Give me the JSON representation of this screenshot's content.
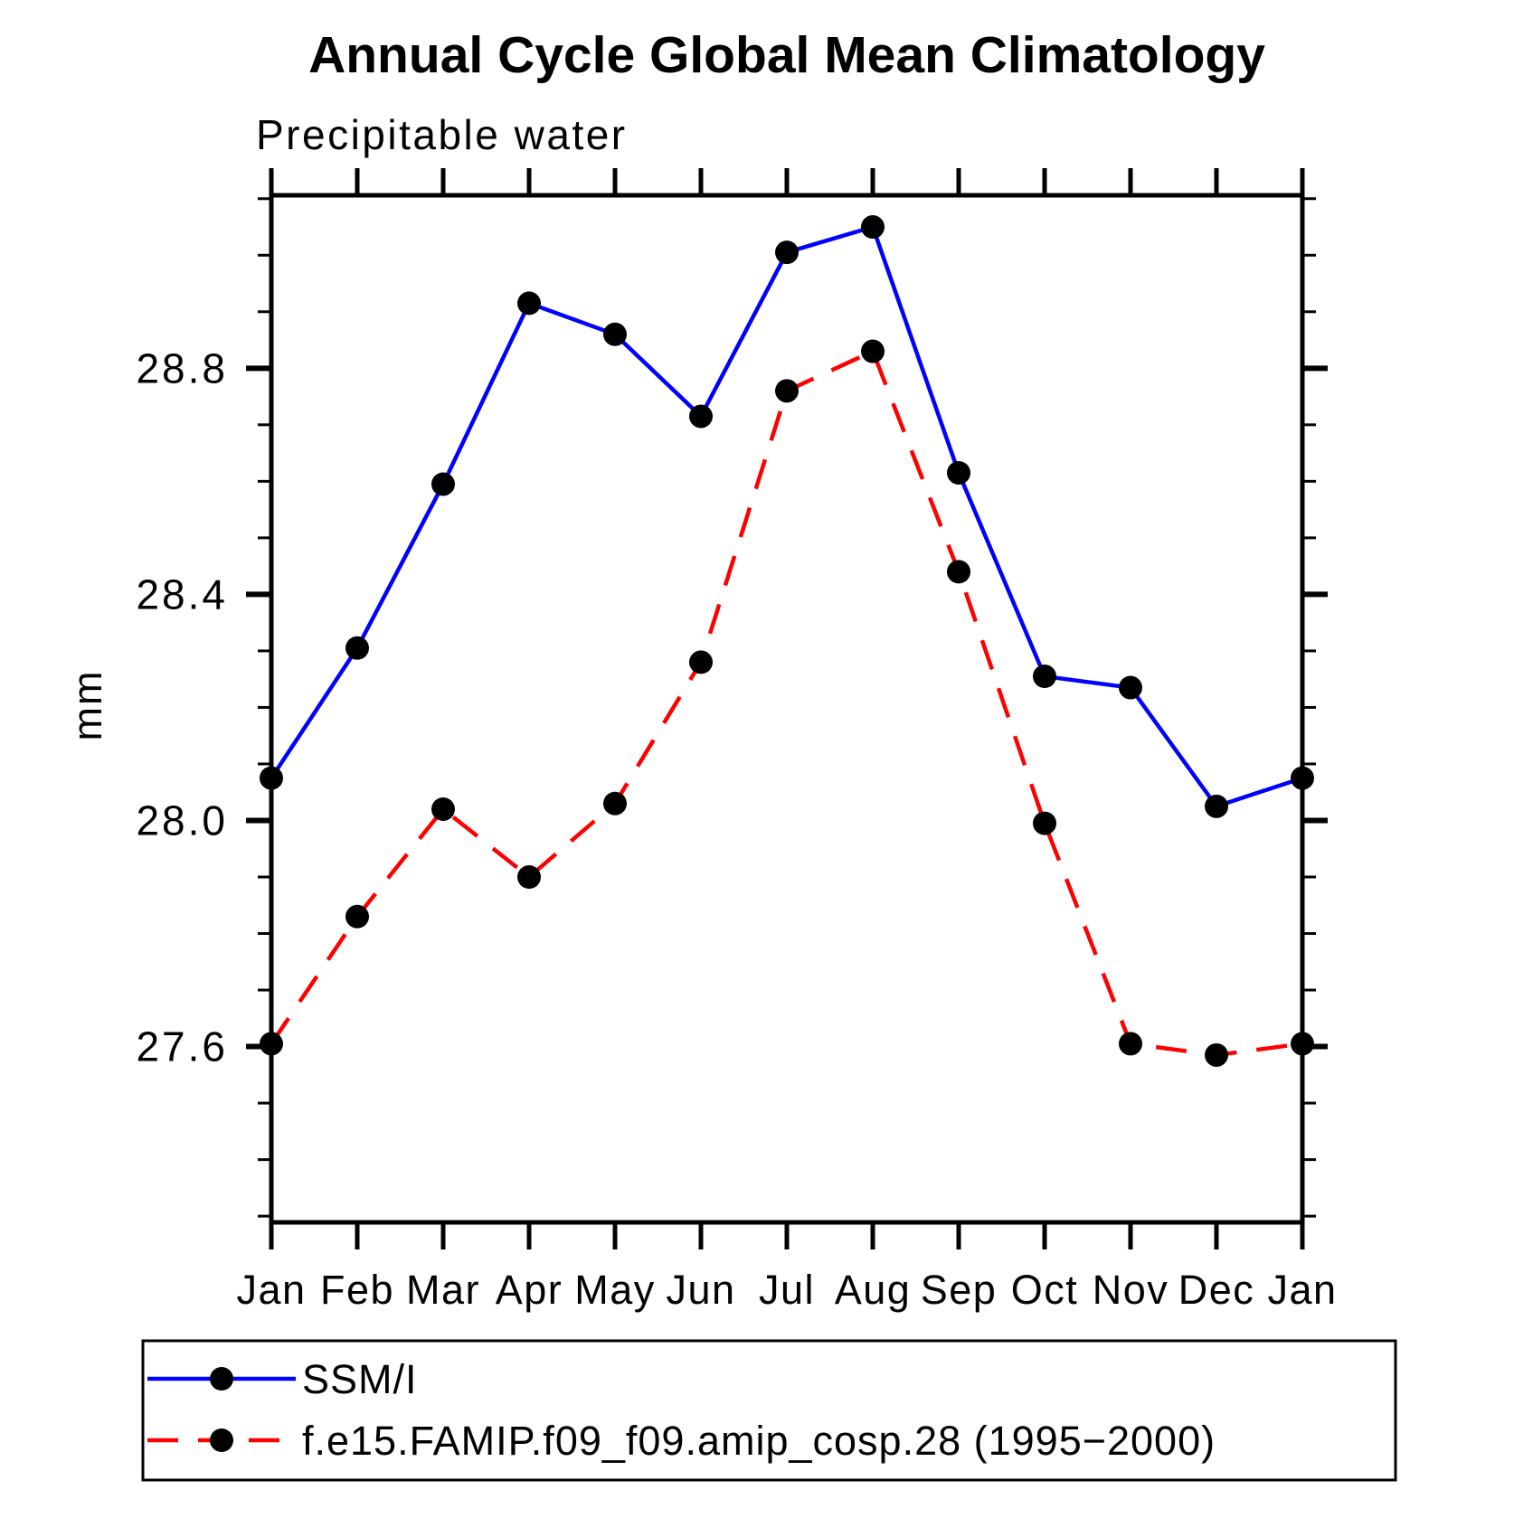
{
  "title": "Annual Cycle Global Mean Climatology",
  "subtitle": "Precipitable water",
  "ylabel": "mm",
  "chart_data": {
    "type": "line",
    "x_categories": [
      "Jan",
      "Feb",
      "Mar",
      "Apr",
      "May",
      "Jun",
      "Jul",
      "Aug",
      "Sep",
      "Oct",
      "Nov",
      "Dec",
      "Jan"
    ],
    "series": [
      {
        "name": "SSM/I",
        "color": "#0000ff",
        "style": "solid",
        "marker": "filled-circle",
        "marker_color": "#000000",
        "values": [
          28.075,
          28.305,
          28.595,
          28.915,
          28.86,
          28.715,
          29.005,
          29.05,
          28.615,
          28.255,
          28.235,
          28.025,
          28.075
        ]
      },
      {
        "name": "f.e15.FAMIP.f09_f09.amip_cosp.28 (1995−2000)",
        "color": "#ff0000",
        "style": "dashed",
        "marker": "filled-circle",
        "marker_color": "#000000",
        "values": [
          27.605,
          27.83,
          28.02,
          27.9,
          28.03,
          28.28,
          28.76,
          28.83,
          28.44,
          27.995,
          27.605,
          27.585,
          27.605
        ]
      }
    ],
    "ylim": [
      27.289,
      29.106
    ],
    "yticks_major": [
      27.6,
      28.0,
      28.4,
      28.8
    ],
    "ytick_labels": [
      "27.6",
      "28.0",
      "28.4",
      "28.8"
    ],
    "yminor_step": 0.1,
    "yminor_range": [
      27.3,
      29.1
    ],
    "grid": "off",
    "legend_position": "bottom",
    "axis_color": "#000000"
  }
}
